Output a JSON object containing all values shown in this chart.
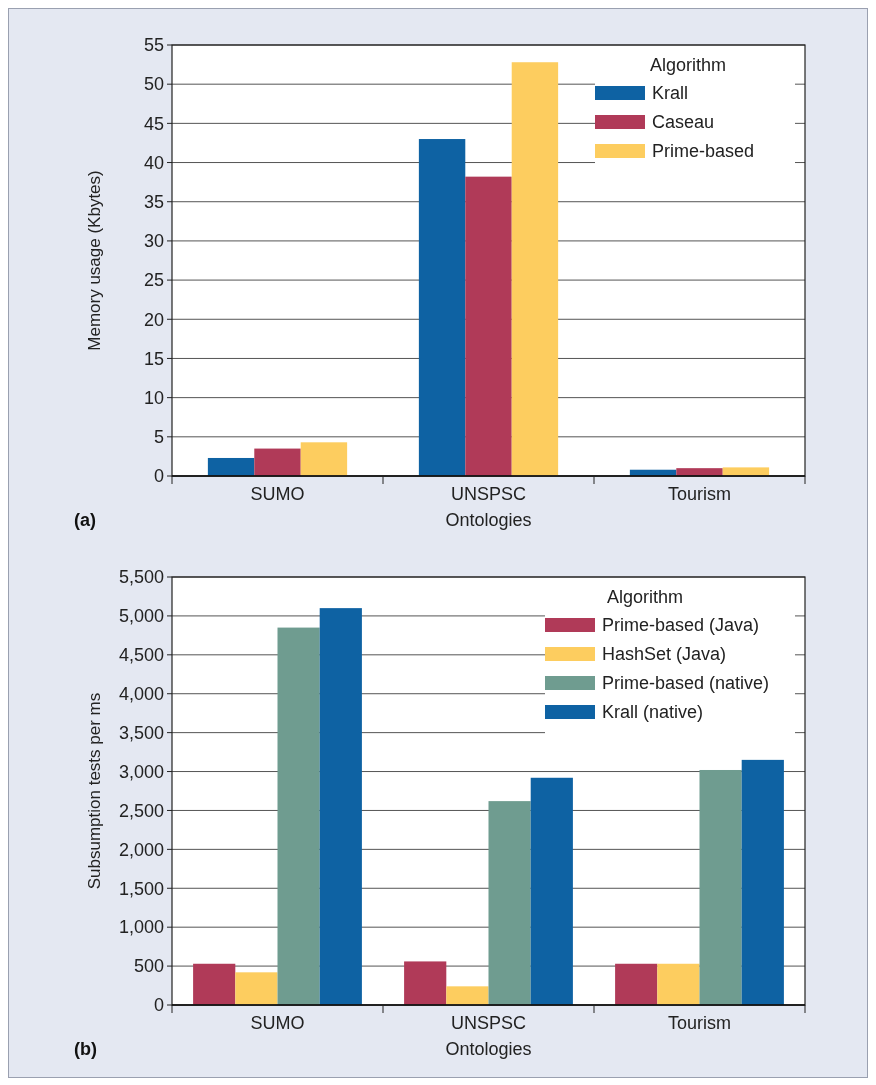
{
  "chart_data": [
    {
      "type": "bar",
      "title": "(a)",
      "xlabel": "Ontologies",
      "ylabel": "Memory usage  (Kbytes)",
      "legend_title": "Algorithm",
      "categories": [
        "SUMO",
        "UNSPSC",
        "Tourism"
      ],
      "ylim": [
        0,
        55
      ],
      "yticks": [
        0,
        5,
        10,
        15,
        20,
        25,
        30,
        35,
        40,
        45,
        50,
        55
      ],
      "grid": "y",
      "legend": "top right",
      "series": [
        {
          "name": "Krall",
          "color": "#0e62a3",
          "values": [
            2.3,
            43.0,
            0.8
          ]
        },
        {
          "name": "Caseau",
          "color": "#b03a58",
          "values": [
            3.5,
            38.2,
            1.0
          ]
        },
        {
          "name": "Prime-based",
          "color": "#fdcd5f",
          "values": [
            4.3,
            52.8,
            1.1
          ]
        }
      ]
    },
    {
      "type": "bar",
      "title": "(b)",
      "xlabel": "Ontologies",
      "ylabel": "Subsumption tests per ms",
      "legend_title": "Algorithm",
      "categories": [
        "SUMO",
        "UNSPSC",
        "Tourism"
      ],
      "ylim": [
        0,
        5500
      ],
      "yticks": [
        0,
        500,
        {
          "value": 1000,
          "label": "1,000"
        },
        {
          "value": 1500,
          "label": "1,500"
        },
        {
          "value": 2000,
          "label": "2,000"
        },
        {
          "value": 2500,
          "label": "2,500"
        },
        {
          "value": 3000,
          "label": "3,000"
        },
        {
          "value": 3500,
          "label": "3,500"
        },
        {
          "value": 4000,
          "label": "4,000"
        },
        {
          "value": 4500,
          "label": "4,500"
        },
        {
          "value": 5000,
          "label": "5,000"
        },
        {
          "value": 5500,
          "label": "5,500"
        }
      ],
      "grid": "y",
      "legend": "top right",
      "series": [
        {
          "name": "Prime-based (Java)",
          "color": "#b03a58",
          "values": [
            530,
            560,
            530
          ]
        },
        {
          "name": "HashSet (Java)",
          "color": "#fdcd5f",
          "values": [
            420,
            240,
            530
          ]
        },
        {
          "name": "Prime-based (native)",
          "color": "#6f9c90",
          "values": [
            4850,
            2620,
            3020
          ]
        },
        {
          "name": "Krall (native)",
          "color": "#0e62a3",
          "values": [
            5100,
            2920,
            3150
          ]
        }
      ]
    }
  ]
}
